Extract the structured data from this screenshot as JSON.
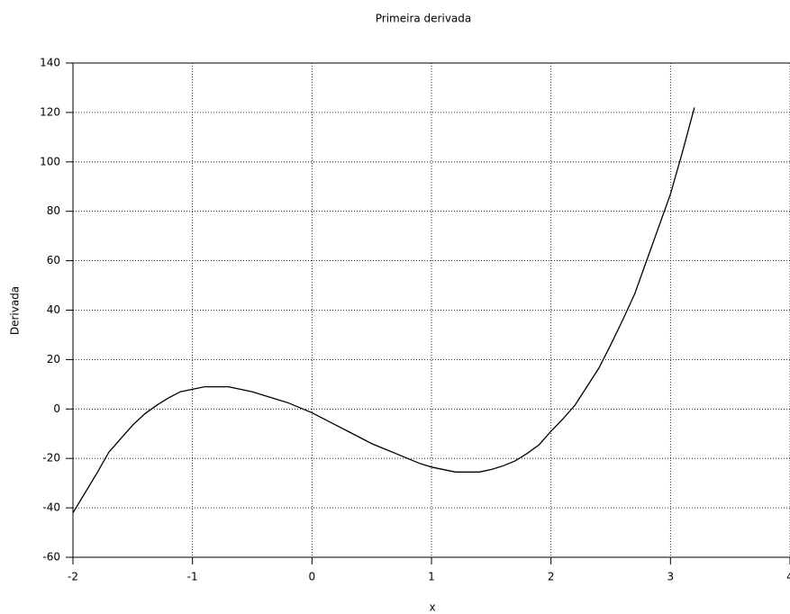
{
  "chart_data": {
    "type": "line",
    "title": "Primeira derivada",
    "x_label": "x",
    "y_label": "Derivada",
    "x": [
      -2,
      -1.9,
      -1.8,
      -1.7,
      -1.6,
      -1.5,
      -1.4,
      -1.3,
      -1.2,
      -1.1,
      -1.0,
      -0.9,
      -0.8,
      -0.7,
      -0.6,
      -0.5,
      -0.4,
      -0.3,
      -0.2,
      -0.1,
      0,
      0.1,
      0.2,
      0.3,
      0.4,
      0.5,
      0.6,
      0.7,
      0.8,
      0.9,
      1.0,
      1.1,
      1.2,
      1.3,
      1.4,
      1.5,
      1.6,
      1.7,
      1.8,
      1.9,
      2.0,
      2.1,
      2.2,
      2.3,
      2.4,
      2.5,
      2.6,
      2.7,
      2.8,
      2.9,
      3.0,
      3.1,
      3.2
    ],
    "series": [
      {
        "color": "#000000",
        "values": [
          -42,
          -34,
          -26,
          -17.5,
          -12,
          -6.5,
          -2,
          1.5,
          4.5,
          7,
          8,
          9,
          9,
          9,
          8,
          7,
          5.5,
          4,
          2.5,
          0.5,
          -1.5,
          -4,
          -6.5,
          -9,
          -11.5,
          -14,
          -16,
          -18,
          -20,
          -22,
          -23.5,
          -24.5,
          -25.5,
          -25.5,
          -25.5,
          -24.5,
          -23,
          -21,
          -18,
          -14.5,
          -9,
          -4,
          1.5,
          9,
          16.5,
          26,
          36,
          46.5,
          60,
          73.5,
          87,
          104,
          122
        ]
      }
    ],
    "xlim": [
      -2,
      4
    ],
    "ylim": [
      -60,
      140
    ],
    "xticks": [
      -2,
      -1,
      0,
      1,
      2,
      3,
      4
    ],
    "yticks": [
      -60,
      -40,
      -20,
      0,
      20,
      40,
      60,
      80,
      100,
      120,
      140
    ],
    "grid": true
  }
}
